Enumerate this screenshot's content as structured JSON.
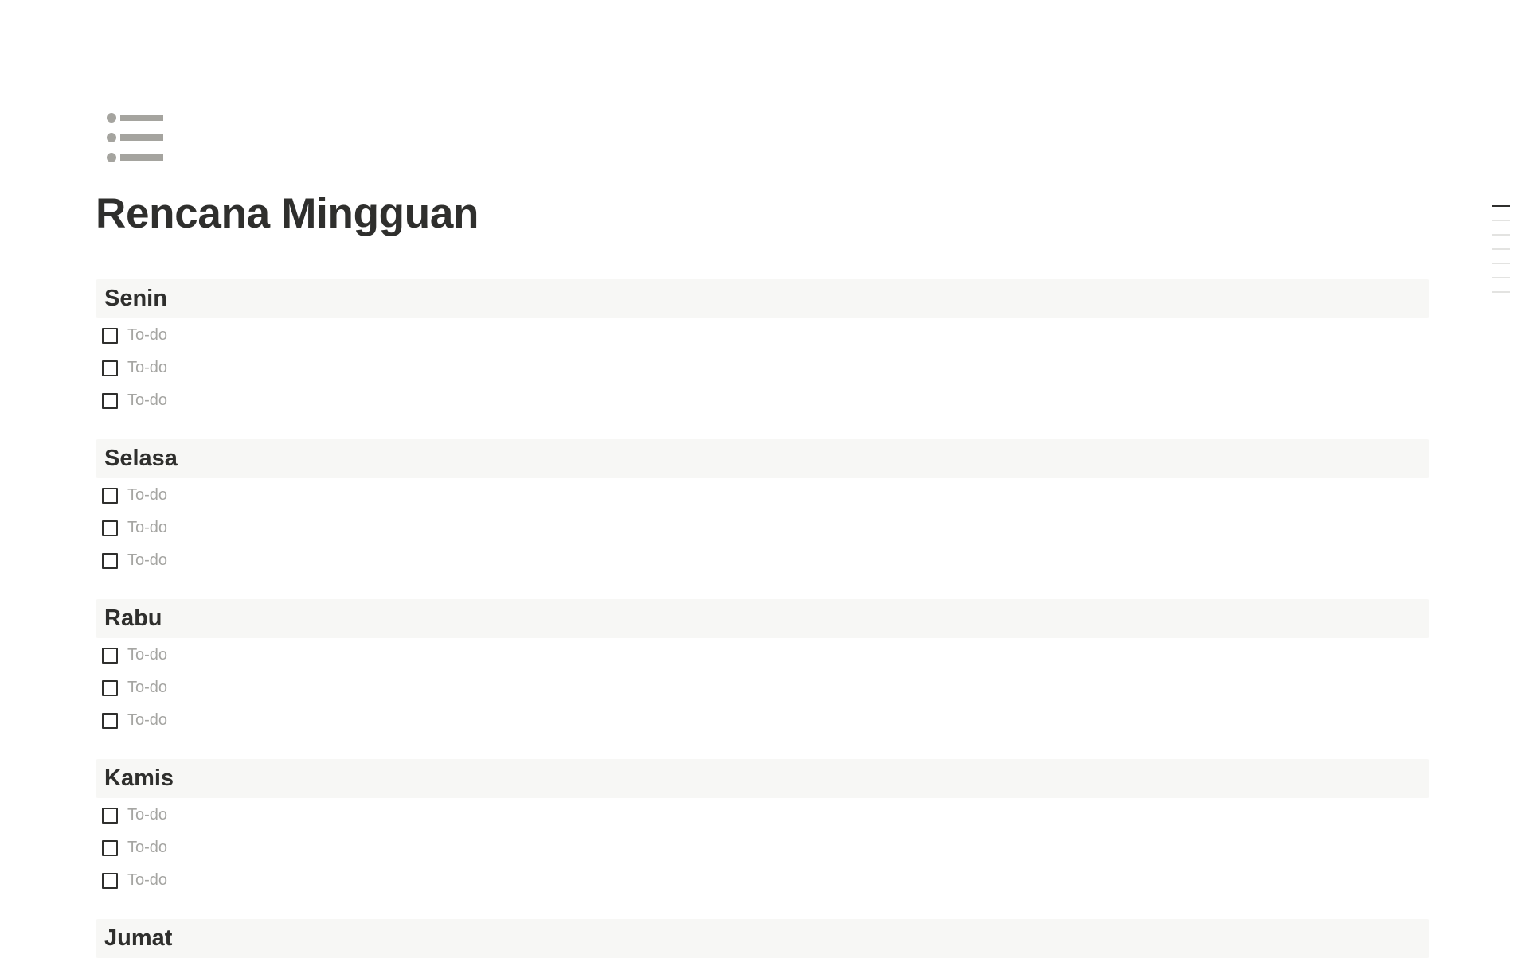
{
  "page": {
    "icon": "bulleted-list-icon",
    "icon_color": "#a5a49f",
    "title": "Rencana Mingguan"
  },
  "sections": [
    {
      "heading": "Senin",
      "todos": [
        "To-do",
        "To-do",
        "To-do"
      ]
    },
    {
      "heading": "Selasa",
      "todos": [
        "To-do",
        "To-do",
        "To-do"
      ]
    },
    {
      "heading": "Rabu",
      "todos": [
        "To-do",
        "To-do",
        "To-do"
      ]
    },
    {
      "heading": "Kamis",
      "todos": [
        "To-do",
        "To-do",
        "To-do"
      ]
    },
    {
      "heading": "Jumat",
      "todos": []
    }
  ],
  "outline_entries": 7
}
